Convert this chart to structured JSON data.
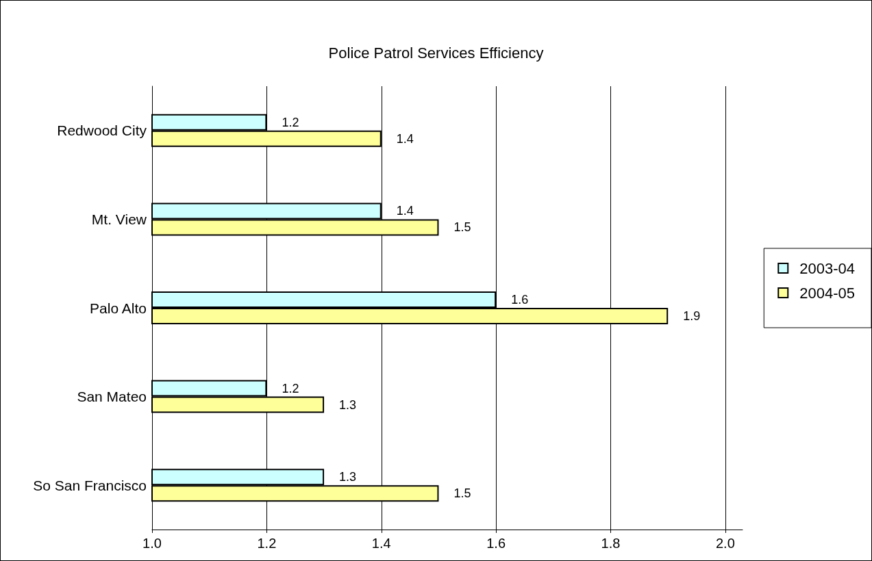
{
  "chart_data": {
    "type": "bar",
    "orientation": "horizontal",
    "title": "Police Patrol Services Efficiency",
    "categories": [
      "Redwood City",
      "Mt. View",
      "Palo Alto",
      "San Mateo",
      "So San Francisco"
    ],
    "series": [
      {
        "name": "2003-04",
        "color": "#ccffff",
        "values": [
          1.2,
          1.4,
          1.6,
          1.2,
          1.3
        ]
      },
      {
        "name": "2004-05",
        "color": "#ffff99",
        "values": [
          1.4,
          1.5,
          1.9,
          1.3,
          1.5
        ]
      }
    ],
    "xlim": [
      1.0,
      2.03
    ],
    "xticks": [
      {
        "value": 1.0,
        "label": "1.0"
      },
      {
        "value": 1.2,
        "label": "1.2"
      },
      {
        "value": 1.4,
        "label": "1.4"
      },
      {
        "value": 1.6,
        "label": "1.6"
      },
      {
        "value": 1.8,
        "label": "1.8"
      },
      {
        "value": 2.0,
        "label": "2.0"
      }
    ],
    "grid": "x",
    "legend": "right",
    "data_labels": true
  }
}
